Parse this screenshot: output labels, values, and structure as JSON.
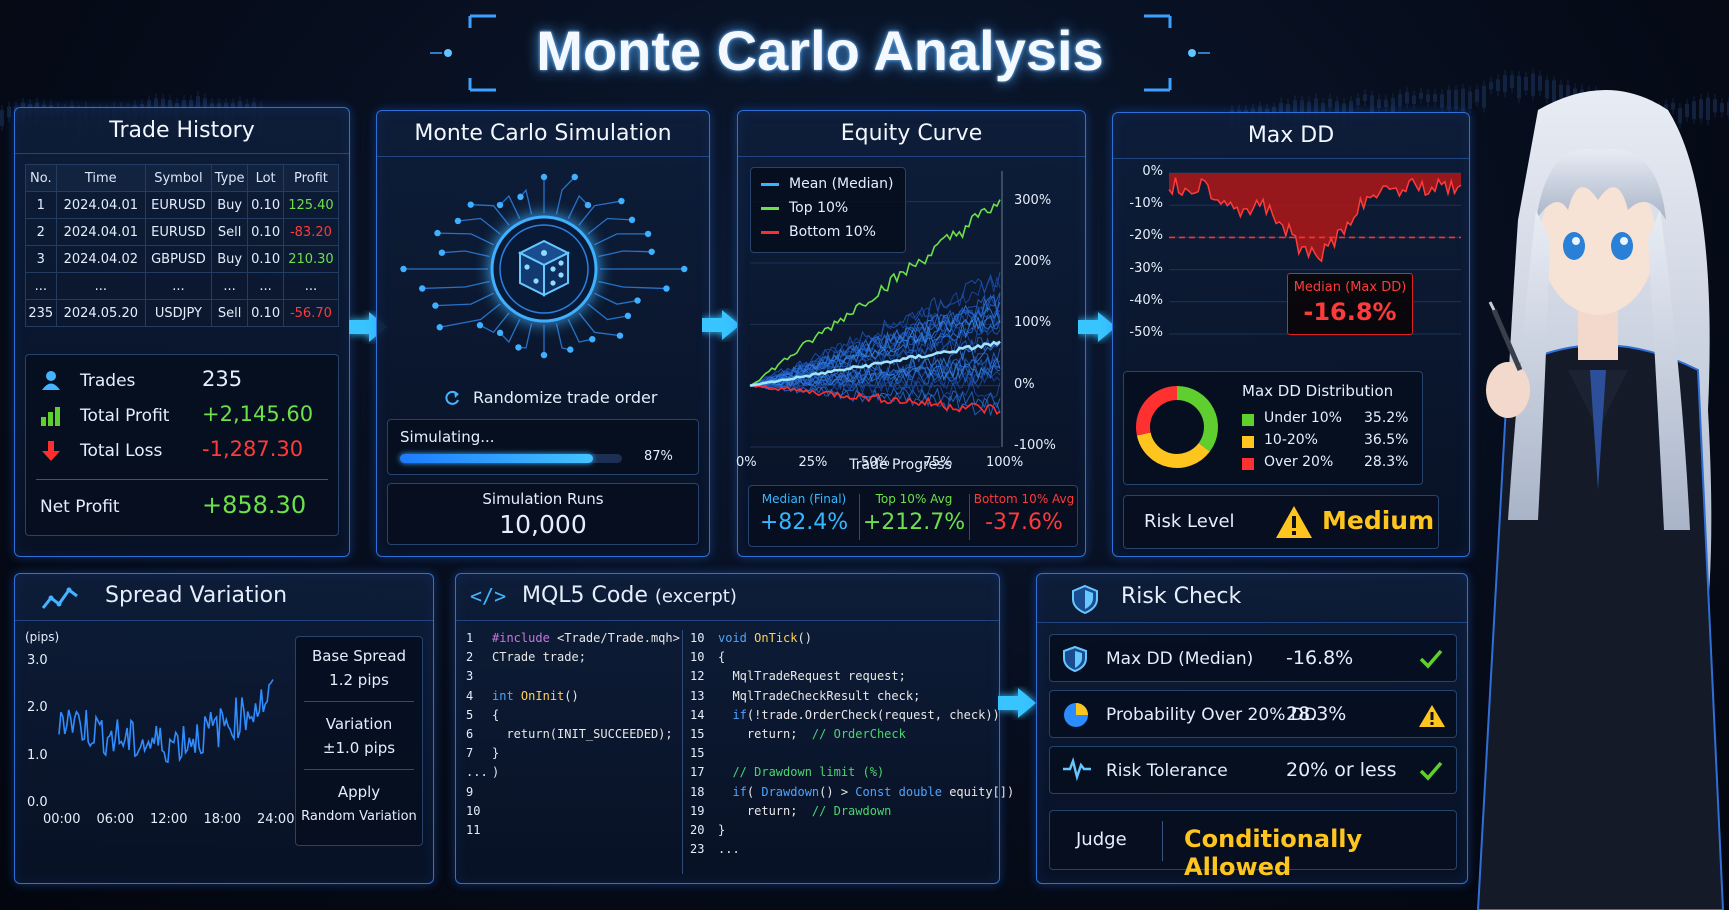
{
  "title": "Monte Carlo Analysis",
  "trade_history": {
    "title": "Trade History",
    "columns": [
      "No.",
      "Time",
      "Symbol",
      "Type",
      "Lot",
      "Profit"
    ],
    "rows": [
      {
        "no": "1",
        "time": "2024.04.01",
        "symbol": "EURUSD",
        "type": "Buy",
        "lot": "0.10",
        "profit": "125.40",
        "positive": true
      },
      {
        "no": "2",
        "time": "2024.04.01",
        "symbol": "EURUSD",
        "type": "Sell",
        "lot": "0.10",
        "profit": "-83.20",
        "positive": false
      },
      {
        "no": "3",
        "time": "2024.04.02",
        "symbol": "GBPUSD",
        "type": "Buy",
        "lot": "0.10",
        "profit": "210.30",
        "positive": true
      },
      {
        "no": "...",
        "time": "...",
        "symbol": "...",
        "type": "...",
        "lot": "...",
        "profit": "...",
        "positive": null
      },
      {
        "no": "235",
        "time": "2024.05.20",
        "symbol": "USDJPY",
        "type": "Sell",
        "lot": "0.10",
        "profit": "-56.70",
        "positive": false
      }
    ],
    "trades_label": "Trades",
    "trades_value": "235",
    "total_profit_label": "Total Profit",
    "total_profit_value": "+2,145.60",
    "total_loss_label": "Total Loss",
    "total_loss_value": "-1,287.30",
    "net_profit_label": "Net Profit",
    "net_profit_value": "+858.30"
  },
  "simulation": {
    "title": "Monte Carlo Simulation",
    "randomize_label": "Randomize trade order",
    "simulating_label": "Simulating...",
    "progress": 0.87,
    "progress_text": "87%",
    "runs_label": "Simulation Runs",
    "runs_value": "10,000"
  },
  "equity": {
    "title": "Equity Curve",
    "legend": [
      "Mean (Median)",
      "Top 10%",
      "Bottom 10%"
    ],
    "y_ticks": [
      "300%",
      "200%",
      "100%",
      "0%",
      "-100%"
    ],
    "x_ticks": [
      "0%",
      "25%",
      "50%",
      "75%",
      "100%"
    ],
    "xlabel": "Trade Progress",
    "stats": [
      {
        "label": "Median (Final)",
        "value": "+82.4%",
        "color": "#35b7ff"
      },
      {
        "label": "Top 10% Avg",
        "value": "+212.7%",
        "color": "#6de04a"
      },
      {
        "label": "Bottom 10% Avg",
        "value": "-37.6%",
        "color": "#ff3a3a"
      }
    ]
  },
  "max_dd": {
    "title": "Max DD",
    "y_ticks": [
      "0%",
      "-10%",
      "-20%",
      "-30%",
      "-40%",
      "-50%"
    ],
    "median_label": "Median (Max DD)",
    "median_value": "-16.8%",
    "dist_title": "Max DD Distribution",
    "dist": [
      {
        "label": "Under 10%",
        "value": "35.2%",
        "pct": 35.2,
        "color": "#5fcf2f"
      },
      {
        "label": "10-20%",
        "value": "36.5%",
        "pct": 36.5,
        "color": "#ffc51f"
      },
      {
        "label": "Over 20%",
        "value": "28.3%",
        "pct": 28.3,
        "color": "#ff3030"
      }
    ],
    "risk_label": "Risk Level",
    "risk_value": "Medium"
  },
  "spread": {
    "title": "Spread Variation",
    "ylabel": "(pips)",
    "y_ticks": [
      "3.0",
      "2.0",
      "1.0",
      "0.0"
    ],
    "x_ticks": [
      "00:00",
      "06:00",
      "12:00",
      "18:00",
      "24:00"
    ],
    "base_label": "Base Spread",
    "base_value": "1.2 pips",
    "variation_label": "Variation",
    "variation_value": "±1.0 pips",
    "apply_label": "Apply",
    "apply_value": "Random Variation"
  },
  "code": {
    "title": "MQL5 Code",
    "title_suffix": "(excerpt)",
    "left_numbers": [
      "1",
      "2",
      "3",
      "4",
      "5",
      "6",
      "7",
      "...",
      "9",
      "10",
      "11"
    ],
    "right_numbers": [
      "10",
      "10",
      "12",
      "13",
      "14",
      "15",
      "15",
      "17",
      "18",
      "19",
      "20",
      "23"
    ]
  },
  "risk_check": {
    "title": "Risk Check",
    "items": [
      {
        "label": "Max DD (Median)",
        "value": "-16.8%",
        "status": "ok"
      },
      {
        "label": "Probability Over 20% DD",
        "value": "28.3%",
        "status": "warn"
      },
      {
        "label": "Risk Tolerance",
        "value": "20% or less",
        "status": "ok"
      }
    ],
    "judge_label": "Judge",
    "judge_value": "Conditionally Allowed"
  }
}
